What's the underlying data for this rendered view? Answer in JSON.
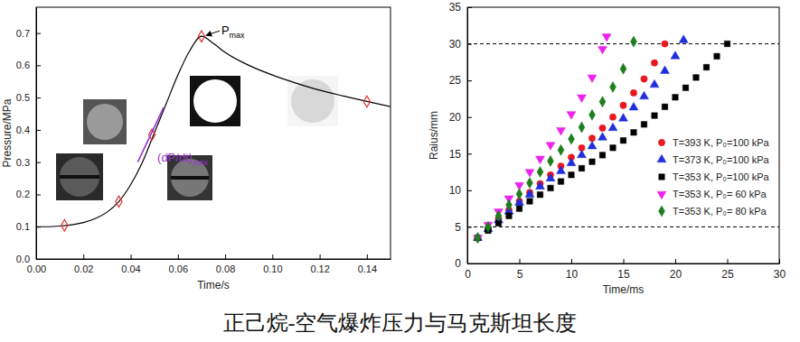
{
  "chart_data": [
    {
      "type": "line",
      "xlabel": "Time/s",
      "ylabel": "Pressure/MPa",
      "xlim": [
        0,
        0.15
      ],
      "ylim": [
        0,
        0.78
      ],
      "xticks": [
        {
          "value": 0,
          "label": "0.00"
        },
        0.02,
        0.04,
        0.06,
        0.08,
        {
          "value": 0.1,
          "label": "0.10"
        },
        0.12,
        0.14
      ],
      "yticks": [
        {
          "value": 0,
          "label": "0.0"
        },
        0.1,
        0.2,
        0.3,
        0.4,
        0.5,
        0.6,
        0.7
      ],
      "series": [
        {
          "color": "#000000",
          "x": [
            0,
            0.005,
            0.01,
            0.015,
            0.02,
            0.025,
            0.03,
            0.035,
            0.04,
            0.045,
            0.05,
            0.055,
            0.06,
            0.065,
            0.07,
            0.075,
            0.08,
            0.09,
            0.1,
            0.11,
            0.12,
            0.13,
            0.14,
            0.15
          ],
          "values": [
            0.1,
            0.1,
            0.102,
            0.106,
            0.113,
            0.125,
            0.145,
            0.178,
            0.23,
            0.3,
            0.39,
            0.48,
            0.57,
            0.645,
            0.69,
            0.668,
            0.64,
            0.6,
            0.57,
            0.545,
            0.523,
            0.505,
            0.488,
            0.472
          ]
        },
        {
          "type": "scatter",
          "color": "#e03030",
          "marker": "open-diamond",
          "x": [
            0.012,
            0.035,
            0.049,
            0.07,
            0.14
          ],
          "values": [
            0.104,
            0.178,
            0.385,
            0.69,
            0.488
          ]
        },
        {
          "color": "#9933cc",
          "x": [
            0.043,
            0.054
          ],
          "values": [
            0.3,
            0.47
          ]
        }
      ],
      "annotations": [
        {
          "text": "P",
          "sub": "max",
          "x": 0.07,
          "y": 0.69,
          "color": "#000000"
        },
        {
          "text": "(dP/dt)",
          "sub": "max",
          "x": 0.049,
          "y": 0.385,
          "color": "#9933cc"
        }
      ]
    },
    {
      "type": "scatter",
      "xlabel": "Time/ms",
      "ylabel": "Raius/mm",
      "xlim": [
        0,
        30
      ],
      "ylim": [
        0,
        35
      ],
      "xticks": [
        0,
        5,
        10,
        15,
        20,
        25,
        30
      ],
      "yticks": [
        0,
        5,
        10,
        15,
        20,
        25,
        30,
        35
      ],
      "reference_lines": [
        5,
        30
      ],
      "legend": "right",
      "series": [
        {
          "name": "T=393 K, P₀=100 kPa",
          "color": "#e8191f",
          "marker": "circle",
          "x": [
            1,
            2,
            3,
            4,
            5,
            6,
            7,
            8,
            9,
            10,
            11,
            12,
            13,
            14,
            15,
            16,
            17,
            18,
            19
          ],
          "values": [
            3.5,
            4.8,
            6.1,
            7.3,
            8.5,
            9.7,
            10.9,
            12.1,
            13.3,
            14.5,
            15.8,
            17.1,
            18.5,
            20.0,
            21.6,
            23.3,
            25.2,
            27.4,
            30.0
          ]
        },
        {
          "name": "T=373 K, P₀=100 kPa",
          "color": "#1f2fdc",
          "marker": "triangle",
          "x": [
            1,
            2,
            3,
            4,
            5,
            6,
            7,
            8,
            9,
            10,
            11,
            12,
            13,
            14,
            15,
            16,
            17,
            18,
            19,
            20,
            20.8
          ],
          "values": [
            3.5,
            4.7,
            5.9,
            7.1,
            8.3,
            9.4,
            10.5,
            11.6,
            12.6,
            13.7,
            14.8,
            16.0,
            17.2,
            18.5,
            19.8,
            21.3,
            22.8,
            24.4,
            26.3,
            28.3,
            30.5
          ]
        },
        {
          "name": "T=353 K, P₀=100 kPa",
          "color": "#000000",
          "marker": "square",
          "x": [
            1,
            2,
            3,
            4,
            5,
            6,
            7,
            8,
            9,
            10,
            11,
            12,
            13,
            14,
            15,
            16,
            17,
            18,
            19,
            20,
            21,
            22,
            23,
            24,
            25
          ],
          "values": [
            3.5,
            4.5,
            5.5,
            6.5,
            7.5,
            8.5,
            9.4,
            10.3,
            11.2,
            12.1,
            13.0,
            13.9,
            14.8,
            15.8,
            16.8,
            17.9,
            19.0,
            20.2,
            21.4,
            22.7,
            24.0,
            25.4,
            26.8,
            28.3,
            30.0
          ]
        },
        {
          "name": "T=353 K, P₀= 60 kPa",
          "color": "#ee22ee",
          "marker": "triangle-down",
          "x": [
            1,
            2,
            3,
            4,
            5,
            6,
            7,
            8,
            9,
            10,
            11,
            12,
            13,
            13.4
          ],
          "values": [
            3.5,
            5.3,
            7.1,
            8.9,
            10.7,
            12.5,
            14.3,
            16.2,
            18.2,
            20.4,
            22.7,
            25.4,
            29.3,
            31.0
          ]
        },
        {
          "name": "T=353 K, P₀= 80 kPa",
          "color": "#1e7e1e",
          "marker": "diamond",
          "x": [
            1,
            2,
            3,
            4,
            5,
            6,
            7,
            8,
            9,
            10,
            11,
            12,
            13,
            14,
            15,
            16
          ],
          "values": [
            3.5,
            5.0,
            6.5,
            8.0,
            9.5,
            11.0,
            12.5,
            14.0,
            15.5,
            17.0,
            18.6,
            20.3,
            22.1,
            24.1,
            26.6,
            30.3
          ]
        }
      ]
    }
  ],
  "caption": "正己烷-空气爆炸压力与马克斯坦长度"
}
